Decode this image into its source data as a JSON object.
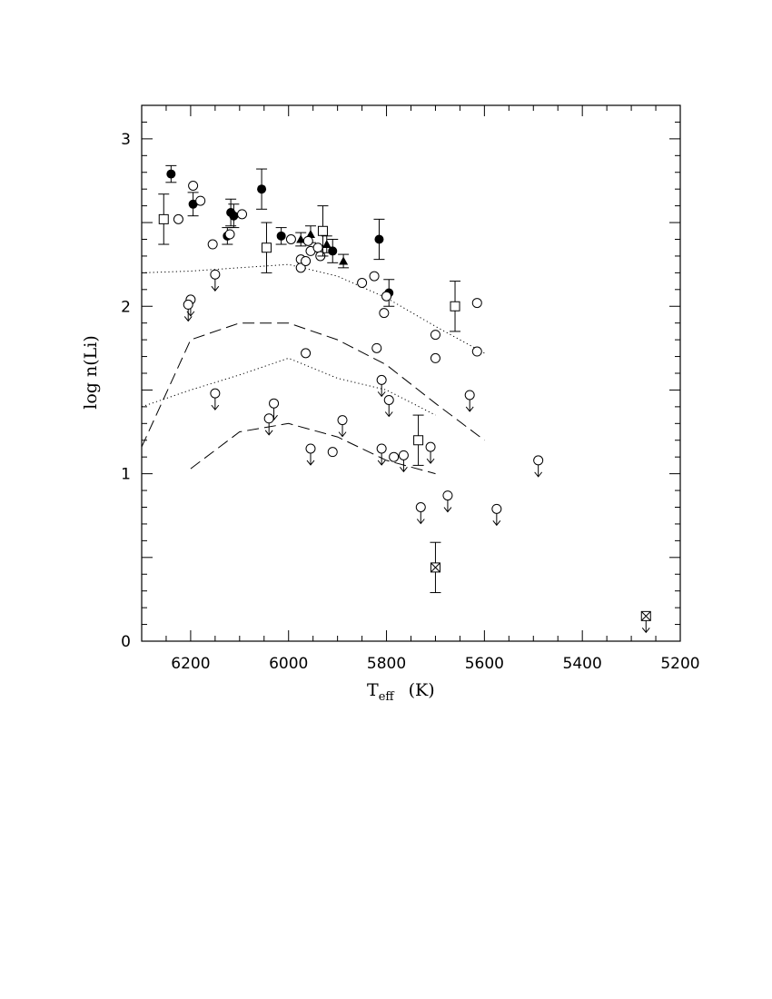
{
  "chart_data": {
    "type": "scatter",
    "title": "",
    "xlabel": {
      "main": "T",
      "sub": "eff",
      "unit": "(K)"
    },
    "ylabel": "log n(Li)",
    "xlim": [
      6300,
      5200
    ],
    "ylim": [
      0,
      3.2
    ],
    "x_ticks": [
      6200,
      6000,
      5800,
      5600,
      5400,
      5200
    ],
    "y_ticks": [
      0,
      1,
      2,
      3
    ],
    "x_tick_labels": [
      "6200",
      "6000",
      "5800",
      "5600",
      "5400",
      "5200"
    ],
    "y_tick_labels": [
      "0",
      "1",
      "2",
      "3"
    ],
    "grid": false,
    "legend": "none",
    "series": [
      {
        "marker": "filled-circle",
        "points": [
          {
            "x": 6240,
            "y": 2.79,
            "err": 0.05
          },
          {
            "x": 6195,
            "y": 2.61,
            "err": 0.07
          },
          {
            "x": 6125,
            "y": 2.42,
            "err": 0.05
          },
          {
            "x": 6118,
            "y": 2.56,
            "err": 0.08
          },
          {
            "x": 6112,
            "y": 2.54,
            "err": 0.07
          },
          {
            "x": 6055,
            "y": 2.7,
            "err": 0.12
          },
          {
            "x": 6015,
            "y": 2.42,
            "err": 0.05
          },
          {
            "x": 5910,
            "y": 2.33,
            "err": 0.07
          },
          {
            "x": 5815,
            "y": 2.4,
            "err": 0.12
          },
          {
            "x": 5795,
            "y": 2.08,
            "err": 0.08
          }
        ]
      },
      {
        "marker": "filled-triangle",
        "points": [
          {
            "x": 5975,
            "y": 2.4,
            "err": 0.04
          },
          {
            "x": 5955,
            "y": 2.43,
            "err": 0.05
          },
          {
            "x": 5922,
            "y": 2.37,
            "err": 0.05
          },
          {
            "x": 5888,
            "y": 2.27,
            "err": 0.04
          }
        ]
      },
      {
        "marker": "open-circle",
        "points": [
          {
            "x": 6225,
            "y": 2.52
          },
          {
            "x": 6195,
            "y": 2.72
          },
          {
            "x": 6180,
            "y": 2.63
          },
          {
            "x": 6155,
            "y": 2.37
          },
          {
            "x": 6120,
            "y": 2.43
          },
          {
            "x": 6095,
            "y": 2.55
          },
          {
            "x": 5995,
            "y": 2.4
          },
          {
            "x": 5975,
            "y": 2.28
          },
          {
            "x": 5975,
            "y": 2.23
          },
          {
            "x": 5965,
            "y": 2.27
          },
          {
            "x": 5960,
            "y": 2.39
          },
          {
            "x": 5955,
            "y": 2.33
          },
          {
            "x": 5940,
            "y": 2.35
          },
          {
            "x": 5935,
            "y": 2.3
          },
          {
            "x": 5850,
            "y": 2.14
          },
          {
            "x": 5825,
            "y": 2.18
          },
          {
            "x": 5820,
            "y": 1.75
          },
          {
            "x": 5805,
            "y": 1.96
          },
          {
            "x": 5800,
            "y": 2.06
          },
          {
            "x": 5700,
            "y": 1.83
          },
          {
            "x": 5700,
            "y": 1.69
          },
          {
            "x": 5615,
            "y": 2.02
          },
          {
            "x": 5615,
            "y": 1.73
          },
          {
            "x": 5965,
            "y": 1.72
          },
          {
            "x": 5910,
            "y": 1.13
          },
          {
            "x": 5785,
            "y": 1.1
          }
        ]
      },
      {
        "marker": "open-circle-upper-limit",
        "points": [
          {
            "x": 6150,
            "y": 2.19
          },
          {
            "x": 6200,
            "y": 2.04
          },
          {
            "x": 6205,
            "y": 2.01
          },
          {
            "x": 6150,
            "y": 1.48
          },
          {
            "x": 6030,
            "y": 1.42
          },
          {
            "x": 6040,
            "y": 1.33
          },
          {
            "x": 5955,
            "y": 1.15
          },
          {
            "x": 5890,
            "y": 1.32
          },
          {
            "x": 5810,
            "y": 1.56
          },
          {
            "x": 5795,
            "y": 1.44
          },
          {
            "x": 5810,
            "y": 1.15
          },
          {
            "x": 5765,
            "y": 1.11
          },
          {
            "x": 5710,
            "y": 1.16
          },
          {
            "x": 5630,
            "y": 1.47
          },
          {
            "x": 5730,
            "y": 0.8
          },
          {
            "x": 5675,
            "y": 0.87
          },
          {
            "x": 5575,
            "y": 0.79
          },
          {
            "x": 5490,
            "y": 1.08
          }
        ]
      },
      {
        "marker": "open-square",
        "points": [
          {
            "x": 6255,
            "y": 2.52,
            "err": 0.15
          },
          {
            "x": 6045,
            "y": 2.35,
            "err": 0.15
          },
          {
            "x": 5930,
            "y": 2.45,
            "err": 0.15
          },
          {
            "x": 5660,
            "y": 2.0,
            "err": 0.15
          },
          {
            "x": 5735,
            "y": 1.2,
            "err": 0.15
          }
        ]
      },
      {
        "marker": "crossed-square",
        "points": [
          {
            "x": 5700,
            "y": 0.44,
            "err": 0.15,
            "upper_limit": false
          },
          {
            "x": 5270,
            "y": 0.15,
            "err": 0,
            "upper_limit": true
          }
        ]
      }
    ],
    "curves": [
      {
        "style": "dotted",
        "points": [
          [
            6300,
            2.2
          ],
          [
            6200,
            2.21
          ],
          [
            6100,
            2.23
          ],
          [
            6000,
            2.25
          ],
          [
            5900,
            2.18
          ],
          [
            5800,
            2.05
          ],
          [
            5700,
            1.88
          ],
          [
            5600,
            1.72
          ]
        ]
      },
      {
        "style": "dashed",
        "points": [
          [
            6300,
            1.16
          ],
          [
            6200,
            1.8
          ],
          [
            6100,
            1.9
          ],
          [
            6000,
            1.9
          ],
          [
            5900,
            1.8
          ],
          [
            5800,
            1.65
          ],
          [
            5700,
            1.42
          ],
          [
            5600,
            1.2
          ]
        ]
      },
      {
        "style": "dotted",
        "points": [
          [
            6300,
            1.4
          ],
          [
            6200,
            1.5
          ],
          [
            6100,
            1.59
          ],
          [
            6000,
            1.69
          ],
          [
            5900,
            1.57
          ],
          [
            5800,
            1.5
          ],
          [
            5700,
            1.35
          ]
        ]
      },
      {
        "style": "dashed",
        "points": [
          [
            6200,
            1.03
          ],
          [
            6100,
            1.25
          ],
          [
            6000,
            1.3
          ],
          [
            5900,
            1.22
          ],
          [
            5800,
            1.08
          ],
          [
            5700,
            1.0
          ]
        ]
      }
    ]
  }
}
